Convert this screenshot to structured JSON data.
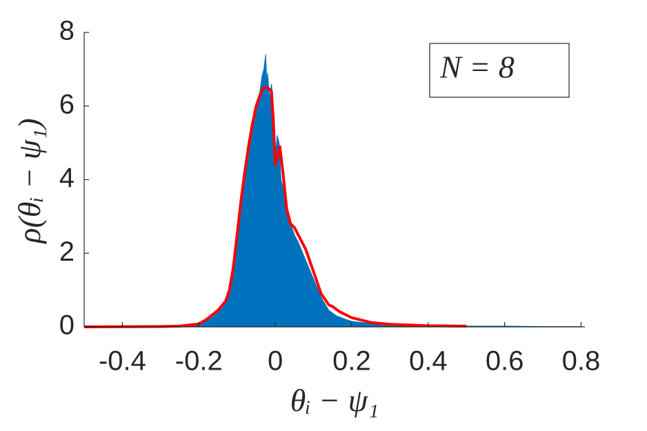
{
  "chart_data": {
    "type": "line",
    "xlabel": "θᵢ − ψ₁",
    "ylabel": "ρ(θᵢ − ψ₁)",
    "annotation": "N = 8",
    "xlim": [
      -0.5,
      0.81
    ],
    "ylim": [
      0,
      8
    ],
    "xticks": [
      -0.4,
      -0.2,
      0,
      0.2,
      0.4,
      0.6,
      0.8
    ],
    "yticks": [
      0,
      2,
      4,
      6,
      8
    ],
    "series": [
      {
        "color": "#0072bd",
        "fill": true,
        "x": [
          -0.5,
          -0.3,
          -0.22,
          -0.2,
          -0.18,
          -0.16,
          -0.14,
          -0.12,
          -0.11,
          -0.1,
          -0.09,
          -0.08,
          -0.07,
          -0.06,
          -0.055,
          -0.05,
          -0.045,
          -0.04,
          -0.035,
          -0.03,
          -0.025,
          -0.022,
          -0.02,
          -0.015,
          -0.01,
          -0.005,
          0,
          0.005,
          0.01,
          0.015,
          0.02,
          0.03,
          0.04,
          0.05,
          0.06,
          0.08,
          0.1,
          0.12,
          0.14,
          0.16,
          0.18,
          0.2,
          0.25,
          0.3,
          0.4,
          0.5,
          0.6,
          0.7,
          0.8
        ],
        "values": [
          0,
          0.01,
          0.03,
          0.06,
          0.15,
          0.3,
          0.5,
          0.9,
          1.4,
          2.2,
          3.2,
          4.0,
          4.8,
          5.4,
          5.9,
          6.0,
          6.2,
          6.4,
          6.8,
          7.0,
          7.4,
          6.6,
          6.9,
          6.2,
          6.6,
          5.9,
          4.6,
          5.2,
          5.0,
          4.0,
          3.8,
          3.3,
          2.8,
          2.5,
          2.3,
          1.8,
          1.3,
          0.8,
          0.45,
          0.3,
          0.22,
          0.15,
          0.09,
          0.05,
          0.03,
          0.02,
          0.02,
          0.01,
          0.01
        ]
      },
      {
        "color": "#ff0000",
        "fill": false,
        "x": [
          -0.5,
          -0.3,
          -0.25,
          -0.2,
          -0.18,
          -0.15,
          -0.13,
          -0.12,
          -0.11,
          -0.1,
          -0.09,
          -0.08,
          -0.07,
          -0.06,
          -0.05,
          -0.04,
          -0.03,
          -0.02,
          -0.01,
          -0.005,
          0,
          0.005,
          0.012,
          0.02,
          0.03,
          0.04,
          0.05,
          0.06,
          0.08,
          0.1,
          0.12,
          0.14,
          0.15,
          0.17,
          0.2,
          0.25,
          0.3,
          0.4,
          0.5
        ],
        "values": [
          0,
          0.01,
          0.02,
          0.08,
          0.2,
          0.45,
          0.7,
          1.0,
          1.6,
          2.5,
          3.4,
          4.2,
          4.9,
          5.5,
          6.0,
          6.3,
          6.5,
          6.5,
          6.4,
          5.6,
          4.4,
          4.6,
          4.9,
          4.2,
          3.2,
          2.8,
          2.7,
          2.5,
          2.1,
          1.5,
          0.9,
          0.6,
          0.55,
          0.4,
          0.25,
          0.12,
          0.07,
          0.03,
          0.02
        ]
      }
    ]
  }
}
